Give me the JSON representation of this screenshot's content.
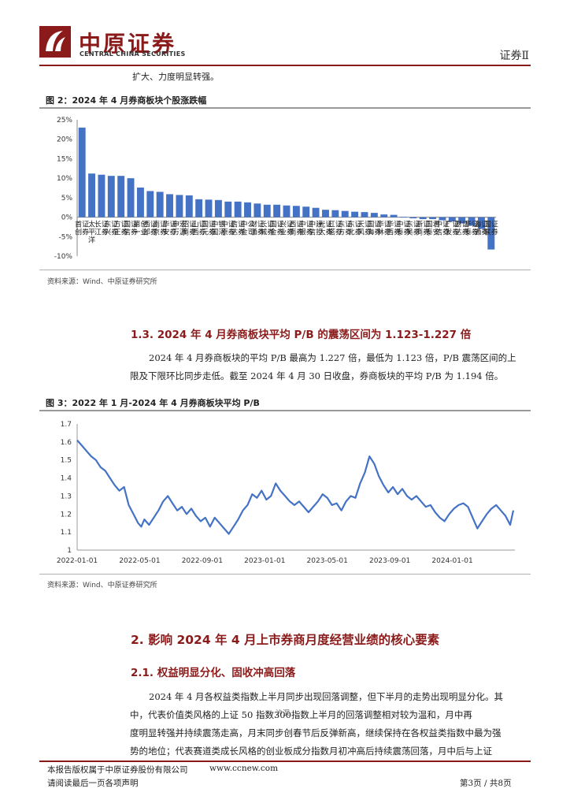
{
  "header": {
    "logo_cn": "中原证券",
    "logo_en": "CENTRAL CHINA SECURITIES",
    "section": "证券Ⅱ"
  },
  "intro_text": "扩大、力度明显转强。",
  "figure2": {
    "title": "图 2：2024 年 4 月券商板块个股涨跌幅",
    "source": "资料来源：Wind、中原证券研究所"
  },
  "figure3": {
    "title": "图 3：2022 年 1 月-2024 年 4 月券商板块平均 P/B",
    "source": "资料来源：Wind、中原证券研究所"
  },
  "section_1_3": {
    "heading": "1.3.  2024 年 4 月券商板块平均 P/B 的震荡区间为 1.123-1.227 倍",
    "lines": [
      "2024 年 4 月券商板块的平均 P/B 最高为 1.227 倍，最低为 1.123 倍，P/B 震荡区间的上",
      "限及下限环比同步走低。截至 2024 年 4 月 30 日收盘，券商板块的平均 P/B 为 1.194 倍。"
    ]
  },
  "section_2": {
    "heading": "2. 影响 2024 年 4 月上市券商月度经营业绩的核心要素"
  },
  "section_2_1": {
    "heading": "2.1. 权益明显分化、固收冲高回落",
    "lines": [
      "2024 年 4 月各权益类指数上半月同步出现回落调整，但下半月的走势出现明显分化。其",
      "中，代表价值类风格的上证 50 指数300指数上半月的回落调整相对较为温和，月中再",
      "度明显转强并持续震荡走高，月末同步创春节后反弹新高，继续保持在各权益类指数中最为强",
      "势的地位；代表赛道类成长风格的创业板成分指数月初冲高后持续震荡回落，月中后与上证"
    ],
    "overlay_mark": "、沪深"
  },
  "footer": {
    "left1": "本报告版权属于中原证券股份有限公司",
    "site": "www.ccnew.com",
    "left2": "请阅读最后一页各项声明",
    "page": "第3页 / 共8页"
  },
  "chart_data": [
    {
      "type": "bar",
      "title": "2024 年 4 月券商板块个股涨跌幅",
      "ylim": [
        -10,
        25
      ],
      "yticks": [
        "25%",
        "20%",
        "15%",
        "10%",
        "5%",
        "0%",
        "-5%",
        "-10%"
      ],
      "bar_color": "#4472c4",
      "categories": [
        "首创证券",
        "太平洋",
        "长江证券",
        "东兴证券",
        "方正证券",
        "国信证券",
        "第一创业",
        "西部证券",
        "南京证券",
        "华安证券",
        "申万宏源",
        "招商证券",
        "山西证券",
        "国元证券",
        "中国银河",
        "中原证券",
        "信达证券",
        "中金公司",
        "财通证券",
        "长城证券",
        "国金证券",
        "兴业证券",
        "西南证券",
        "中银证券",
        "中信建投",
        "光大证券",
        "红塔证券",
        "东方证券",
        "东北证券",
        "天风证券",
        "国海证券",
        "华林证券",
        "华西证券",
        "中泰证券",
        "东吴证券",
        "浙商证券",
        "国泰君安",
        "中信证券",
        "广发证券",
        "财达证券",
        "华泰证券",
        "海通证券",
        "国联证券"
      ],
      "values": [
        23.0,
        11.2,
        10.9,
        10.6,
        10.6,
        10.0,
        7.6,
        6.7,
        6.5,
        5.9,
        5.7,
        5.6,
        4.6,
        4.5,
        4.4,
        4.0,
        4.0,
        3.8,
        3.5,
        3.2,
        3.2,
        3.0,
        2.9,
        2.7,
        2.4,
        1.9,
        1.8,
        1.6,
        1.4,
        1.3,
        1.1,
        0.7,
        0.6,
        0.1,
        -0.3,
        -0.5,
        -0.5,
        -0.8,
        -1.1,
        -1.6,
        -2.2,
        -3.0,
        -8.3
      ]
    },
    {
      "type": "line",
      "title": "2022 年 1 月-2024 年 4 月券商板块平均 P/B",
      "ylim": [
        1,
        1.7
      ],
      "yticks": [
        "1.7",
        "1.6",
        "1.5",
        "1.4",
        "1.3",
        "1.2",
        "1.1",
        "1"
      ],
      "xticks": [
        "2022-01-01",
        "2022-05-01",
        "2022-09-01",
        "2023-01-01",
        "2023-05-01",
        "2023-09-01",
        "2024-01-01"
      ],
      "x_range_months": [
        0,
        28
      ],
      "line_color": "#4472c4",
      "series": [
        {
          "name": "券商板块平均 P/B",
          "x": [
            0,
            0.3,
            0.6,
            0.9,
            1.2,
            1.5,
            1.8,
            2.1,
            2.4,
            2.7,
            3.0,
            3.3,
            3.6,
            3.9,
            4.1,
            4.3,
            4.6,
            4.9,
            5.2,
            5.5,
            5.8,
            6.1,
            6.4,
            6.7,
            7.0,
            7.3,
            7.6,
            7.9,
            8.2,
            8.5,
            8.8,
            9.1,
            9.4,
            9.7,
            10.0,
            10.3,
            10.6,
            10.9,
            11.2,
            11.5,
            11.8,
            12.1,
            12.4,
            12.7,
            13.0,
            13.3,
            13.6,
            13.9,
            14.2,
            14.5,
            14.8,
            15.1,
            15.4,
            15.7,
            16.0,
            16.3,
            16.6,
            16.9,
            17.2,
            17.5,
            17.8,
            18.1,
            18.4,
            18.7,
            19.0,
            19.3,
            19.6,
            19.9,
            20.2,
            20.5,
            20.8,
            21.1,
            21.4,
            21.7,
            22.0,
            22.3,
            22.6,
            22.9,
            23.2,
            23.5,
            23.8,
            24.1,
            24.4,
            24.7,
            25.0,
            25.3,
            25.6,
            25.9,
            26.2,
            26.5,
            26.8,
            27.1,
            27.4,
            27.7,
            27.9
          ],
          "y": [
            1.61,
            1.58,
            1.55,
            1.52,
            1.5,
            1.46,
            1.44,
            1.4,
            1.36,
            1.33,
            1.35,
            1.25,
            1.2,
            1.15,
            1.13,
            1.17,
            1.14,
            1.18,
            1.22,
            1.27,
            1.3,
            1.26,
            1.22,
            1.24,
            1.2,
            1.23,
            1.19,
            1.16,
            1.18,
            1.13,
            1.18,
            1.15,
            1.12,
            1.09,
            1.13,
            1.17,
            1.22,
            1.25,
            1.31,
            1.29,
            1.33,
            1.28,
            1.3,
            1.37,
            1.33,
            1.3,
            1.27,
            1.25,
            1.27,
            1.24,
            1.21,
            1.24,
            1.27,
            1.31,
            1.29,
            1.25,
            1.26,
            1.22,
            1.27,
            1.3,
            1.29,
            1.37,
            1.43,
            1.52,
            1.48,
            1.41,
            1.36,
            1.32,
            1.35,
            1.31,
            1.34,
            1.3,
            1.28,
            1.3,
            1.27,
            1.24,
            1.25,
            1.21,
            1.18,
            1.16,
            1.2,
            1.23,
            1.25,
            1.26,
            1.24,
            1.18,
            1.12,
            1.16,
            1.2,
            1.23,
            1.25,
            1.22,
            1.19,
            1.14,
            1.22
          ]
        }
      ]
    }
  ]
}
